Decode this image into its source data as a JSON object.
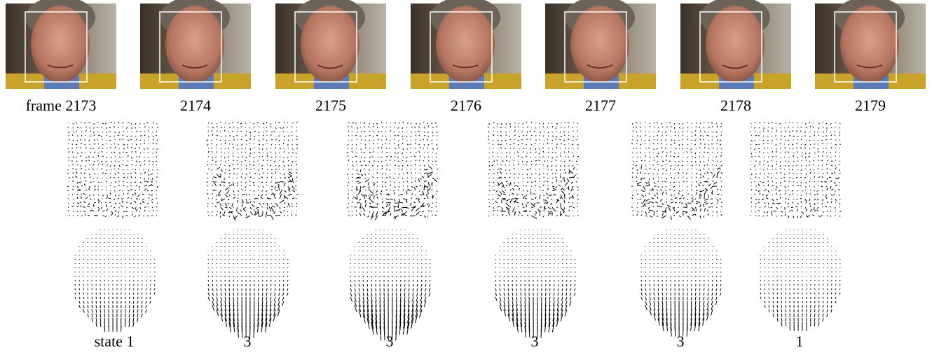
{
  "frames": [
    "frame 2173",
    "2174",
    "2175",
    "2176",
    "2177",
    "2178",
    "2179"
  ],
  "states": [
    "state 1",
    "3",
    "3",
    "3",
    "3",
    "1"
  ]
}
